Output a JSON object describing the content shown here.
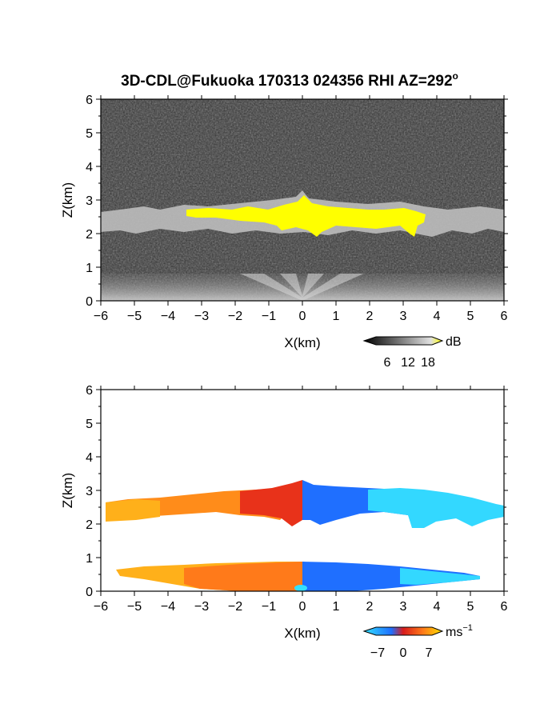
{
  "title": "3D-CDL@Fukuoka 170313 024356 RHI AZ=292",
  "title_superscript": "o",
  "colors": {
    "background": "#ffffff",
    "reflectivity_fill": "#333333",
    "reflectivity_layer": "#c9c9c9",
    "reflectivity_high": "#ffff00",
    "velocity_negative": "#1f6fff",
    "velocity_zero": "#d81b1b",
    "velocity_positive": "#ffb000",
    "velocity_light_negative": "#33e0ff"
  },
  "chart_data": [
    {
      "type": "heatmap",
      "variable": "reflectivity",
      "xlabel": "X(km)",
      "ylabel": "Z(km)",
      "xlim": [
        -6,
        6
      ],
      "ylim": [
        0,
        6
      ],
      "xticks": [
        "−6",
        "−5",
        "−4",
        "−3",
        "−2",
        "−1",
        "0",
        "1",
        "2",
        "3",
        "4",
        "5",
        "6"
      ],
      "yticks": [
        "0",
        "1",
        "2",
        "3",
        "4",
        "5",
        "6"
      ],
      "colorbar": {
        "unit": "dB",
        "ticks": [
          "6",
          "12",
          "18"
        ]
      },
      "features": {
        "cloud_layer_base_km": 2.0,
        "cloud_layer_top_km": 2.9,
        "cloud_layer_x_km": [
          -6,
          6
        ],
        "high_reflectivity_x_km": [
          -3.4,
          3.6
        ],
        "high_reflectivity_z_km": [
          2.2,
          2.8
        ],
        "near_surface_layer_top_km": 0.8
      }
    },
    {
      "type": "heatmap",
      "variable": "radial_velocity",
      "xlabel": "X(km)",
      "ylabel": "Z(km)",
      "xlim": [
        -6,
        6
      ],
      "ylim": [
        0,
        6
      ],
      "xticks": [
        "−6",
        "−5",
        "−4",
        "−3",
        "−2",
        "−1",
        "0",
        "1",
        "2",
        "3",
        "4",
        "5",
        "6"
      ],
      "yticks": [
        "0",
        "1",
        "2",
        "3",
        "4",
        "5",
        "6"
      ],
      "colorbar": {
        "unit": "ms",
        "unit_exponent": "−1",
        "ticks": [
          "−7",
          "0",
          "7"
        ]
      },
      "features": {
        "upper_layer_z_km": [
          2.0,
          3.0
        ],
        "lower_layer_z_km": [
          0.0,
          0.8
        ],
        "left_side_sign": "positive",
        "right_side_sign": "negative",
        "transition_x_km": 0.0
      }
    }
  ]
}
